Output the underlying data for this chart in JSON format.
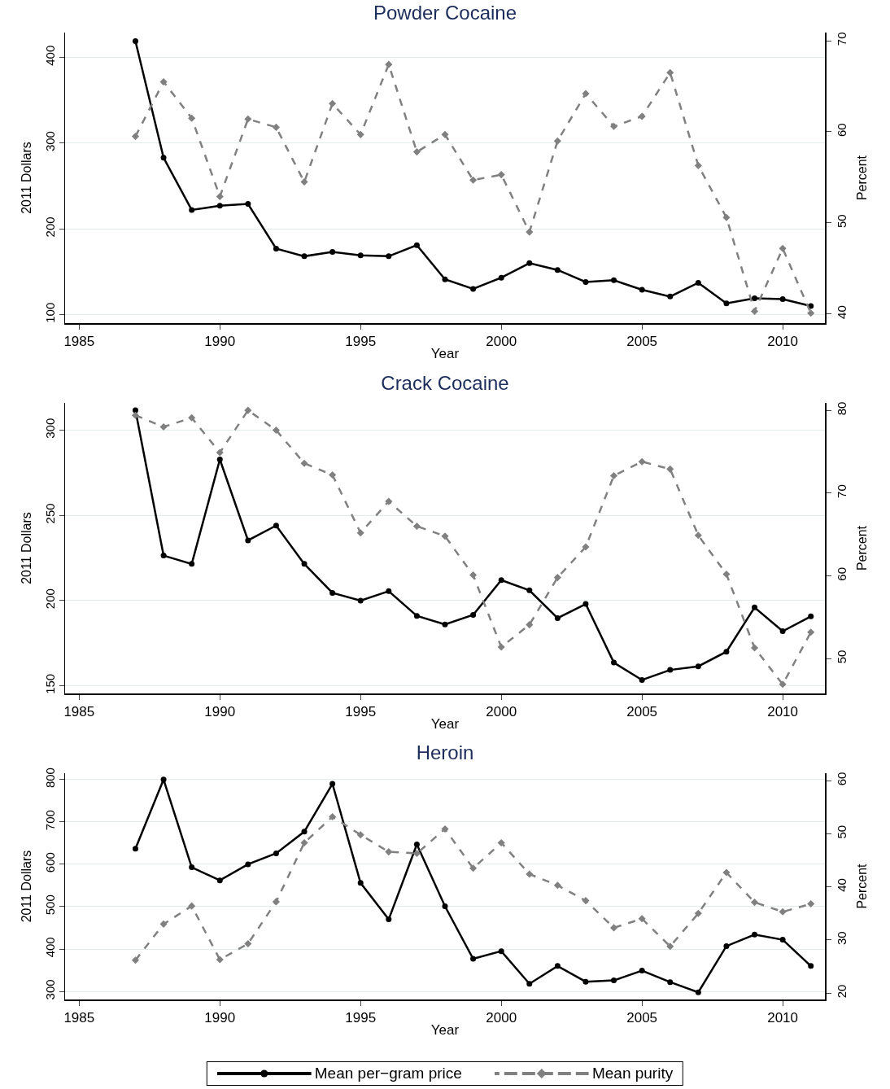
{
  "chart_data": [
    {
      "type": "line",
      "title": "Powder Cocaine",
      "xlabel": "Year",
      "ylabel": "2011 Dollars",
      "y2label": "Percent",
      "x": [
        1987,
        1988,
        1989,
        1990,
        1991,
        1992,
        1993,
        1994,
        1995,
        1996,
        1997,
        1998,
        1999,
        2000,
        2001,
        2002,
        2003,
        2004,
        2005,
        2006,
        2007,
        2008,
        2009,
        2010,
        2011
      ],
      "xlim": [
        1984.5,
        2011.5
      ],
      "xticks": [
        1985,
        1990,
        1995,
        2000,
        2005,
        2010
      ],
      "ylim": [
        90,
        429
      ],
      "yticks": [
        100,
        200,
        300,
        400
      ],
      "y2lim": [
        39,
        70.9
      ],
      "y2ticks": [
        40,
        50,
        60,
        70
      ],
      "grid": "y",
      "legend": false,
      "series": [
        {
          "color": "#000000",
          "marker": "circle",
          "line_style": "solid",
          "values": [
            419,
            283,
            222,
            227,
            229,
            177,
            168,
            173,
            169,
            168,
            181,
            141,
            130,
            143,
            160,
            152,
            138,
            140,
            129,
            121,
            137,
            113,
            119,
            118,
            110
          ]
        },
        {
          "color": "#808080",
          "marker": "diamond",
          "line_style": "dashed",
          "axis": "y2",
          "values": [
            59.5,
            65.5,
            61.5,
            52.9,
            61.4,
            60.5,
            54.5,
            63.1,
            59.7,
            67.4,
            57.8,
            59.7,
            54.7,
            55.3,
            49,
            59,
            64.2,
            60.6,
            61.7,
            66.5,
            56.3,
            50.6,
            40.3,
            47.2,
            40.1
          ]
        }
      ]
    },
    {
      "type": "line",
      "title": "Crack Cocaine",
      "xlabel": "Year",
      "ylabel": "2011 Dollars",
      "y2label": "Percent",
      "x": [
        1987,
        1988,
        1989,
        1990,
        1991,
        1992,
        1993,
        1994,
        1995,
        1996,
        1997,
        1998,
        1999,
        2000,
        2001,
        2002,
        2003,
        2004,
        2005,
        2006,
        2007,
        2008,
        2009,
        2010,
        2011
      ],
      "xlim": [
        1984.5,
        2011.5
      ],
      "xticks": [
        1985,
        1990,
        1995,
        2000,
        2005,
        2010
      ],
      "ylim": [
        145.5,
        316
      ],
      "yticks": [
        150,
        200,
        250,
        300
      ],
      "y2lim": [
        45.8,
        80.9
      ],
      "y2ticks": [
        50,
        60,
        70,
        80
      ],
      "grid": "y",
      "legend": false,
      "series": [
        {
          "color": "#000000",
          "marker": "circle",
          "line_style": "solid",
          "values": [
            311.7,
            226.4,
            221.5,
            282.8,
            235.3,
            244,
            221.5,
            204.5,
            200,
            205.5,
            191,
            186,
            191.6,
            212,
            206,
            189.7,
            198,
            163.6,
            153.4,
            159.3,
            161.4,
            170,
            196,
            182,
            190.7
          ]
        },
        {
          "color": "#808080",
          "marker": "diamond",
          "line_style": "dashed",
          "axis": "y2",
          "values": [
            79.4,
            78,
            79.1,
            74.9,
            80,
            77.6,
            73.6,
            72.2,
            65.2,
            69,
            66,
            64.8,
            60.1,
            51.4,
            54.1,
            59.8,
            63.5,
            72.1,
            73.8,
            72.9,
            64.9,
            60.2,
            51.3,
            46.9,
            53.2
          ]
        }
      ]
    },
    {
      "type": "line",
      "title": "Heroin",
      "xlabel": "Year",
      "ylabel": "2011 Dollars",
      "y2label": "Percent",
      "x": [
        1987,
        1988,
        1989,
        1990,
        1991,
        1992,
        1993,
        1994,
        1995,
        1996,
        1997,
        1998,
        1999,
        2000,
        2001,
        2002,
        2003,
        2004,
        2005,
        2006,
        2007,
        2008,
        2009,
        2010,
        2011
      ],
      "xlim": [
        1984.5,
        2011.5
      ],
      "xticks": [
        1985,
        1990,
        1995,
        2000,
        2005,
        2010
      ],
      "ylim": [
        281,
        815
      ],
      "yticks": [
        300,
        400,
        500,
        600,
        700,
        800
      ],
      "y2lim": [
        18.8,
        61.4
      ],
      "y2ticks": [
        20,
        30,
        40,
        50,
        60
      ],
      "grid": "y",
      "legend": "bottom",
      "series": [
        {
          "name": "Mean per−gram price",
          "color": "#000000",
          "marker": "circle",
          "line_style": "solid",
          "values": [
            637,
            800,
            593,
            562,
            600,
            626,
            677,
            790,
            556,
            470,
            647,
            501,
            377,
            395,
            318,
            360,
            323,
            326,
            349,
            322,
            298,
            407,
            434,
            422,
            360
          ]
        },
        {
          "name": "Mean purity",
          "color": "#808080",
          "marker": "diamond",
          "line_style": "dashed",
          "axis": "y2",
          "values": [
            26.2,
            33,
            36.4,
            26.3,
            29.3,
            37.2,
            48.3,
            53.2,
            49.8,
            46.6,
            46.3,
            50.9,
            43.5,
            48.3,
            42.4,
            40.3,
            37.4,
            32.3,
            34,
            28.8,
            35,
            42.7,
            37.1,
            35.3,
            36.8
          ]
        }
      ]
    }
  ]
}
